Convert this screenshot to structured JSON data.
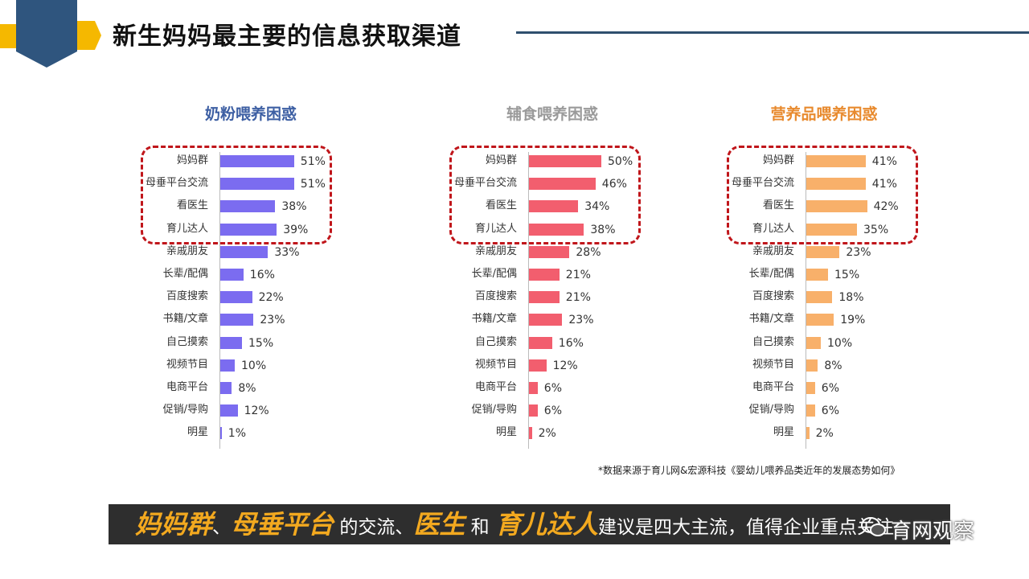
{
  "page": {
    "title": "新生妈妈最主要的信息获取渠道",
    "source_note": "*数据来源于育儿网&宏源科技《婴幼儿喂养品类近年的发展态势如何》",
    "banner": {
      "parts": [
        {
          "text": "妈妈群",
          "highlight": true
        },
        {
          "text": "、",
          "highlight": false
        },
        {
          "text": "母垂平台",
          "highlight": true
        },
        {
          "text": " 的交流、",
          "highlight": false
        },
        {
          "text": "医生",
          "highlight": true
        },
        {
          "text": " 和 ",
          "highlight": false
        },
        {
          "text": "育儿达人",
          "highlight": true
        },
        {
          "text": "建议是四大主流，值得企业重点关注",
          "highlight": false
        }
      ]
    },
    "watermark": "育网观察",
    "colors": {
      "header_navy": "#2f557e",
      "header_yellow": "#f5b800",
      "dashed_box": "#c0161b",
      "banner_bg": "#2e2e2e",
      "banner_highlight": "#f3a91f"
    }
  },
  "chart_data": [
    {
      "type": "bar",
      "orientation": "horizontal",
      "title": "奶粉喂养困惑",
      "title_color": "#3d5fa3",
      "bar_color": "#7b6cf0",
      "categories": [
        "妈妈群",
        "母垂平台交流",
        "看医生",
        "育儿达人",
        "亲戚朋友",
        "长辈/配偶",
        "百度搜索",
        "书籍/文章",
        "自己摸索",
        "视频节目",
        "电商平台",
        "促销/导购",
        "明星"
      ],
      "values": [
        51,
        51,
        38,
        39,
        33,
        16,
        22,
        23,
        15,
        10,
        8,
        12,
        1
      ],
      "unit": "%",
      "highlighted_categories": [
        "妈妈群",
        "母垂平台交流",
        "看医生",
        "育儿达人"
      ]
    },
    {
      "type": "bar",
      "orientation": "horizontal",
      "title": "辅食喂养困惑",
      "title_color": "#9a9a9a",
      "bar_color": "#f25e6e",
      "categories": [
        "妈妈群",
        "母垂平台交流",
        "看医生",
        "育儿达人",
        "亲戚朋友",
        "长辈/配偶",
        "百度搜索",
        "书籍/文章",
        "自己摸索",
        "视频节目",
        "电商平台",
        "促销/导购",
        "明星"
      ],
      "values": [
        50,
        46,
        34,
        38,
        28,
        21,
        21,
        23,
        16,
        12,
        6,
        6,
        2
      ],
      "unit": "%",
      "highlighted_categories": [
        "妈妈群",
        "母垂平台交流",
        "看医生",
        "育儿达人"
      ]
    },
    {
      "type": "bar",
      "orientation": "horizontal",
      "title": "营养品喂养困惑",
      "title_color": "#e88a2e",
      "bar_color": "#f8b06a",
      "categories": [
        "妈妈群",
        "母垂平台交流",
        "看医生",
        "育儿达人",
        "亲戚朋友",
        "长辈/配偶",
        "百度搜索",
        "书籍/文章",
        "自己摸索",
        "视频节目",
        "电商平台",
        "促销/导购",
        "明星"
      ],
      "values": [
        41,
        41,
        42,
        35,
        23,
        15,
        18,
        19,
        10,
        8,
        6,
        6,
        2
      ],
      "unit": "%",
      "highlighted_categories": [
        "妈妈群",
        "母垂平台交流",
        "看医生",
        "育儿达人"
      ]
    }
  ]
}
